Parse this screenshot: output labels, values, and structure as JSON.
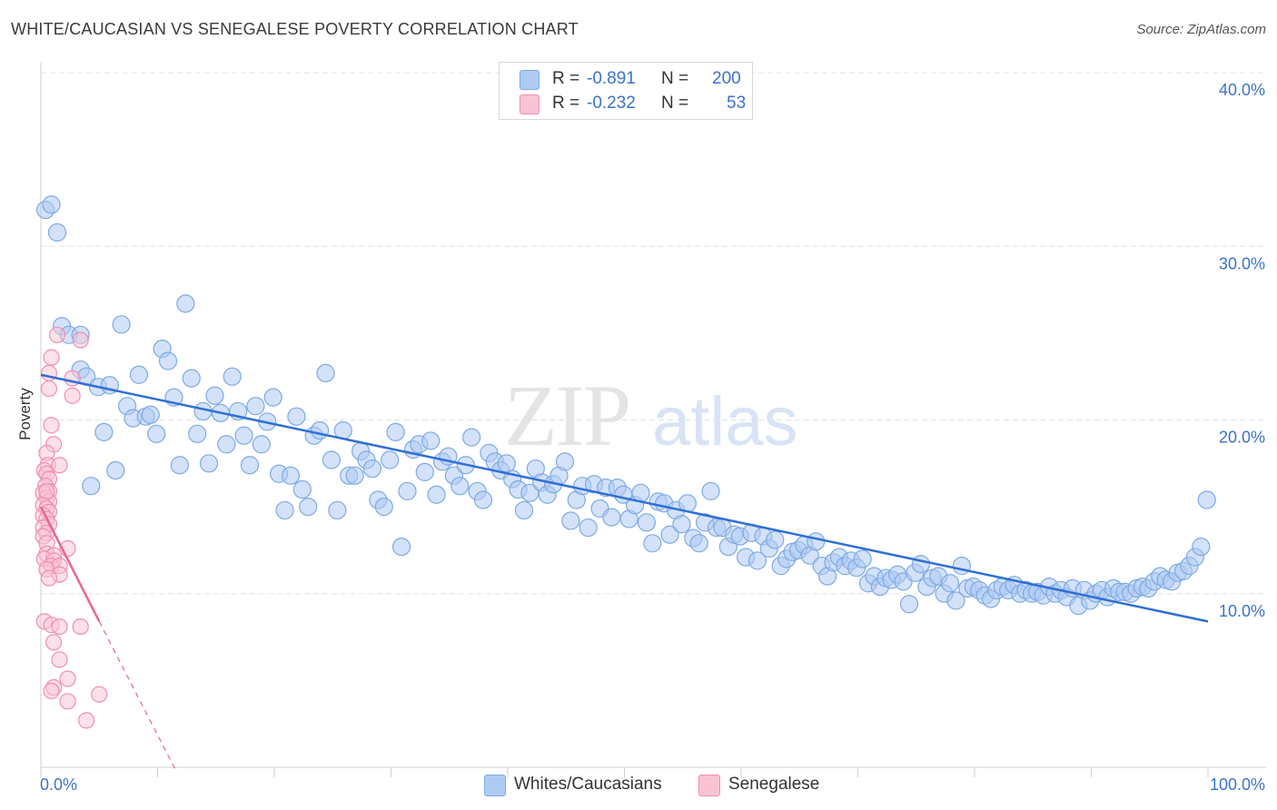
{
  "header": {
    "title": "WHITE/CAUCASIAN VS SENEGALESE POVERTY CORRELATION CHART",
    "source": "Source: ZipAtlas.com"
  },
  "legend": {
    "r_label": "R =",
    "n_label": "N =",
    "rows": [
      {
        "r": "-0.891",
        "n": "200"
      },
      {
        "r": "-0.232",
        "n": "53"
      }
    ]
  },
  "watermark": {
    "zip": "ZIP",
    "atlas": "atlas"
  },
  "bottom_legend": [
    "Whites/Caucasians",
    "Senegalese"
  ],
  "colors": {
    "blue_fill": "#aecbf3",
    "blue_stroke": "#7ea9e4",
    "blue_line": "#2f6fd6",
    "pink_fill": "#f9c3d3",
    "pink_stroke": "#f08fae",
    "pink_line": "#e8658f",
    "axis_text": "#3b73c9",
    "grid": "#e2e2e2"
  },
  "chart_data": {
    "type": "scatter",
    "title": "WHITE/CAUCASIAN VS SENEGALESE POVERTY CORRELATION CHART",
    "xlabel": "",
    "ylabel": "Poverty",
    "xlim": [
      0,
      100
    ],
    "ylim": [
      0,
      40
    ],
    "x_tick_labels": [
      "0.0%",
      "100.0%"
    ],
    "y_ticks": [
      10,
      20,
      30,
      40
    ],
    "y_tick_labels": [
      "10.0%",
      "20.0%",
      "30.0%",
      "40.0%"
    ],
    "grid": true,
    "legend_position": "top-center",
    "series": [
      {
        "name": "Whites/Caucasians",
        "R": -0.891,
        "N": 200,
        "trend": {
          "x": [
            0,
            100
          ],
          "y": [
            22.6,
            8.4
          ]
        },
        "points": [
          [
            0.4,
            32.1
          ],
          [
            0.9,
            32.4
          ],
          [
            1.4,
            30.8
          ],
          [
            1.8,
            25.4
          ],
          [
            2.4,
            24.9
          ],
          [
            3.4,
            24.9
          ],
          [
            3.4,
            22.9
          ],
          [
            3.9,
            22.5
          ],
          [
            4.3,
            16.2
          ],
          [
            4.9,
            21.9
          ],
          [
            5.4,
            19.3
          ],
          [
            5.9,
            22.0
          ],
          [
            6.4,
            17.1
          ],
          [
            6.9,
            25.5
          ],
          [
            7.4,
            20.8
          ],
          [
            7.9,
            20.1
          ],
          [
            8.4,
            22.6
          ],
          [
            9.0,
            20.2
          ],
          [
            9.4,
            20.3
          ],
          [
            9.9,
            19.2
          ],
          [
            10.4,
            24.1
          ],
          [
            10.9,
            23.4
          ],
          [
            11.4,
            21.3
          ],
          [
            11.9,
            17.4
          ],
          [
            12.4,
            26.7
          ],
          [
            12.9,
            22.4
          ],
          [
            13.4,
            19.2
          ],
          [
            13.9,
            20.5
          ],
          [
            14.4,
            17.5
          ],
          [
            14.9,
            21.4
          ],
          [
            15.4,
            20.4
          ],
          [
            15.9,
            18.6
          ],
          [
            16.4,
            22.5
          ],
          [
            16.9,
            20.5
          ],
          [
            17.4,
            19.1
          ],
          [
            17.9,
            17.4
          ],
          [
            18.4,
            20.8
          ],
          [
            18.9,
            18.6
          ],
          [
            19.4,
            19.9
          ],
          [
            19.9,
            21.3
          ],
          [
            20.4,
            16.9
          ],
          [
            20.9,
            14.8
          ],
          [
            21.4,
            16.8
          ],
          [
            21.9,
            20.2
          ],
          [
            22.4,
            16.0
          ],
          [
            22.9,
            15.0
          ],
          [
            23.4,
            19.1
          ],
          [
            23.9,
            19.4
          ],
          [
            24.4,
            22.7
          ],
          [
            24.9,
            17.7
          ],
          [
            25.4,
            14.8
          ],
          [
            25.9,
            19.4
          ],
          [
            26.4,
            16.8
          ],
          [
            26.9,
            16.8
          ],
          [
            27.4,
            18.2
          ],
          [
            27.9,
            17.7
          ],
          [
            28.4,
            17.2
          ],
          [
            28.9,
            15.4
          ],
          [
            29.4,
            15.0
          ],
          [
            29.9,
            17.7
          ],
          [
            30.4,
            19.3
          ],
          [
            30.9,
            12.7
          ],
          [
            31.4,
            15.9
          ],
          [
            31.9,
            18.3
          ],
          [
            32.4,
            18.6
          ],
          [
            32.9,
            17.0
          ],
          [
            33.4,
            18.8
          ],
          [
            33.9,
            15.7
          ],
          [
            34.4,
            17.6
          ],
          [
            34.9,
            17.9
          ],
          [
            35.4,
            16.8
          ],
          [
            35.9,
            16.2
          ],
          [
            36.4,
            17.4
          ],
          [
            36.9,
            19.0
          ],
          [
            37.4,
            15.9
          ],
          [
            37.9,
            15.4
          ],
          [
            38.4,
            18.1
          ],
          [
            38.9,
            17.6
          ],
          [
            39.4,
            17.1
          ],
          [
            39.9,
            17.5
          ],
          [
            40.4,
            16.6
          ],
          [
            40.9,
            16.0
          ],
          [
            41.4,
            14.8
          ],
          [
            41.9,
            15.8
          ],
          [
            42.4,
            17.2
          ],
          [
            42.9,
            16.4
          ],
          [
            43.4,
            15.7
          ],
          [
            43.9,
            16.3
          ],
          [
            44.4,
            16.8
          ],
          [
            44.9,
            17.6
          ],
          [
            45.4,
            14.2
          ],
          [
            45.9,
            15.4
          ],
          [
            46.4,
            16.2
          ],
          [
            46.9,
            13.8
          ],
          [
            47.4,
            16.3
          ],
          [
            47.9,
            14.9
          ],
          [
            48.4,
            16.1
          ],
          [
            48.9,
            14.4
          ],
          [
            49.4,
            16.1
          ],
          [
            49.9,
            15.7
          ],
          [
            50.4,
            14.3
          ],
          [
            50.9,
            15.1
          ],
          [
            51.4,
            15.8
          ],
          [
            51.9,
            14.1
          ],
          [
            52.4,
            12.9
          ],
          [
            52.9,
            15.3
          ],
          [
            53.4,
            15.2
          ],
          [
            53.9,
            13.4
          ],
          [
            54.4,
            14.8
          ],
          [
            54.9,
            14.0
          ],
          [
            55.4,
            15.2
          ],
          [
            55.9,
            13.2
          ],
          [
            56.4,
            12.9
          ],
          [
            56.9,
            14.1
          ],
          [
            57.4,
            15.9
          ],
          [
            57.9,
            13.8
          ],
          [
            58.4,
            13.8
          ],
          [
            58.9,
            12.7
          ],
          [
            59.4,
            13.4
          ],
          [
            59.9,
            13.3
          ],
          [
            60.4,
            12.1
          ],
          [
            60.9,
            13.5
          ],
          [
            61.4,
            11.9
          ],
          [
            61.9,
            13.3
          ],
          [
            62.4,
            12.6
          ],
          [
            62.9,
            13.1
          ],
          [
            63.4,
            11.6
          ],
          [
            63.9,
            12.0
          ],
          [
            64.4,
            12.4
          ],
          [
            64.9,
            12.5
          ],
          [
            65.4,
            12.8
          ],
          [
            65.9,
            12.2
          ],
          [
            66.4,
            13.0
          ],
          [
            66.9,
            11.6
          ],
          [
            67.4,
            11.0
          ],
          [
            67.9,
            11.8
          ],
          [
            68.4,
            12.1
          ],
          [
            68.9,
            11.6
          ],
          [
            69.4,
            11.9
          ],
          [
            69.9,
            11.5
          ],
          [
            70.4,
            12.0
          ],
          [
            70.9,
            10.6
          ],
          [
            71.4,
            11.0
          ],
          [
            71.9,
            10.4
          ],
          [
            72.4,
            10.9
          ],
          [
            72.9,
            10.8
          ],
          [
            73.4,
            11.1
          ],
          [
            73.9,
            10.7
          ],
          [
            74.4,
            9.4
          ],
          [
            74.9,
            11.2
          ],
          [
            75.4,
            11.7
          ],
          [
            75.9,
            10.4
          ],
          [
            76.4,
            10.9
          ],
          [
            76.9,
            11.0
          ],
          [
            77.4,
            10.0
          ],
          [
            77.9,
            10.6
          ],
          [
            78.4,
            9.6
          ],
          [
            78.9,
            11.6
          ],
          [
            79.4,
            10.3
          ],
          [
            79.9,
            10.4
          ],
          [
            80.4,
            10.2
          ],
          [
            80.9,
            9.9
          ],
          [
            81.4,
            9.7
          ],
          [
            81.9,
            10.2
          ],
          [
            82.4,
            10.4
          ],
          [
            82.9,
            10.2
          ],
          [
            83.4,
            10.5
          ],
          [
            83.9,
            10.0
          ],
          [
            84.4,
            10.2
          ],
          [
            84.9,
            10.0
          ],
          [
            85.4,
            10.1
          ],
          [
            85.9,
            9.9
          ],
          [
            86.4,
            10.4
          ],
          [
            86.9,
            10.0
          ],
          [
            87.4,
            10.2
          ],
          [
            87.9,
            9.8
          ],
          [
            88.4,
            10.3
          ],
          [
            88.9,
            9.3
          ],
          [
            89.4,
            10.2
          ],
          [
            89.9,
            9.6
          ],
          [
            90.4,
            10.0
          ],
          [
            90.9,
            10.2
          ],
          [
            91.4,
            9.8
          ],
          [
            91.9,
            10.3
          ],
          [
            92.4,
            10.1
          ],
          [
            92.9,
            10.1
          ],
          [
            93.4,
            10.0
          ],
          [
            93.9,
            10.3
          ],
          [
            94.4,
            10.4
          ],
          [
            94.9,
            10.3
          ],
          [
            95.4,
            10.7
          ],
          [
            95.9,
            11.0
          ],
          [
            96.4,
            10.8
          ],
          [
            96.9,
            10.7
          ],
          [
            97.4,
            11.2
          ],
          [
            97.9,
            11.3
          ],
          [
            98.4,
            11.6
          ],
          [
            98.9,
            12.1
          ],
          [
            99.4,
            12.7
          ],
          [
            99.9,
            15.4
          ]
        ]
      },
      {
        "name": "Senegalese",
        "R": -0.232,
        "N": 53,
        "trend": {
          "x": [
            0,
            5
          ],
          "y": [
            15.0,
            8.4
          ]
        },
        "trend_ext": {
          "x": [
            5,
            11.5
          ],
          "y": [
            8.4,
            -0.1
          ]
        },
        "points": [
          [
            1.4,
            24.9
          ],
          [
            3.4,
            24.6
          ],
          [
            0.9,
            23.6
          ],
          [
            0.7,
            22.7
          ],
          [
            0.7,
            21.8
          ],
          [
            2.7,
            22.4
          ],
          [
            2.7,
            21.4
          ],
          [
            0.9,
            19.7
          ],
          [
            1.1,
            18.6
          ],
          [
            0.5,
            18.1
          ],
          [
            0.6,
            17.4
          ],
          [
            1.6,
            17.4
          ],
          [
            0.3,
            17.1
          ],
          [
            0.5,
            16.9
          ],
          [
            0.7,
            16.6
          ],
          [
            0.4,
            16.2
          ],
          [
            0.7,
            15.9
          ],
          [
            0.2,
            15.8
          ],
          [
            0.5,
            15.5
          ],
          [
            0.7,
            15.3
          ],
          [
            0.2,
            15.1
          ],
          [
            0.5,
            14.9
          ],
          [
            0.7,
            14.7
          ],
          [
            0.2,
            14.5
          ],
          [
            0.5,
            14.3
          ],
          [
            0.7,
            14.0
          ],
          [
            0.2,
            13.8
          ],
          [
            0.5,
            13.5
          ],
          [
            0.2,
            13.3
          ],
          [
            0.5,
            12.9
          ],
          [
            2.3,
            12.6
          ],
          [
            0.5,
            12.3
          ],
          [
            1.1,
            12.2
          ],
          [
            0.3,
            12.0
          ],
          [
            1.1,
            11.9
          ],
          [
            0.9,
            11.6
          ],
          [
            1.6,
            11.6
          ],
          [
            0.5,
            11.4
          ],
          [
            1.6,
            11.1
          ],
          [
            0.7,
            10.9
          ],
          [
            0.3,
            8.4
          ],
          [
            0.9,
            8.2
          ],
          [
            1.6,
            8.1
          ],
          [
            3.4,
            8.1
          ],
          [
            1.1,
            7.2
          ],
          [
            1.6,
            6.2
          ],
          [
            2.3,
            5.1
          ],
          [
            1.1,
            4.6
          ],
          [
            0.9,
            4.4
          ],
          [
            5.0,
            4.2
          ],
          [
            2.3,
            3.8
          ],
          [
            3.9,
            2.7
          ],
          [
            0.5,
            15.9
          ]
        ]
      }
    ]
  }
}
